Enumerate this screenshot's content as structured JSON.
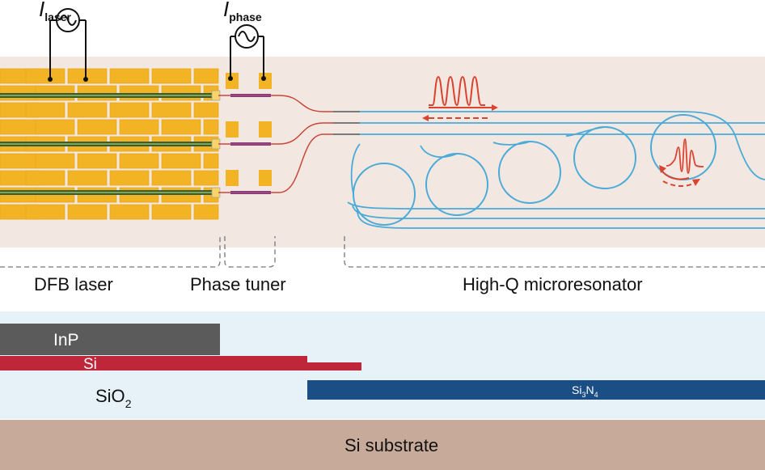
{
  "top": {
    "laser_current": {
      "symbol": "I",
      "subscript": "laser"
    },
    "phase_current": {
      "symbol": "I",
      "subscript": "phase"
    },
    "section_labels": {
      "dfb_laser": "DFB laser",
      "phase_tuner": "Phase tuner",
      "microresonator": "High-Q microresonator"
    },
    "channels": 3,
    "resonators": 5
  },
  "cross_section": {
    "inp": "InP",
    "si": "Si",
    "sio2": {
      "base": "SiO",
      "sub": "2"
    },
    "si3n4": {
      "a": "Si",
      "sub1": "3",
      "b": "N",
      "sub2": "4"
    },
    "substrate": "Si substrate"
  },
  "colors": {
    "chip_bg": "#f3e8e1",
    "gold": "#f2b324",
    "waveguide_red": "#c8463a",
    "ring_blue": "#4aaad8",
    "heater_purple": "#6b3fa0",
    "inp_gray": "#5b5b5b",
    "si_red": "#c0263a",
    "sin_blue": "#1c4e86",
    "clad_light": "#e6f1f8",
    "substrate": "#c8aa9b"
  }
}
